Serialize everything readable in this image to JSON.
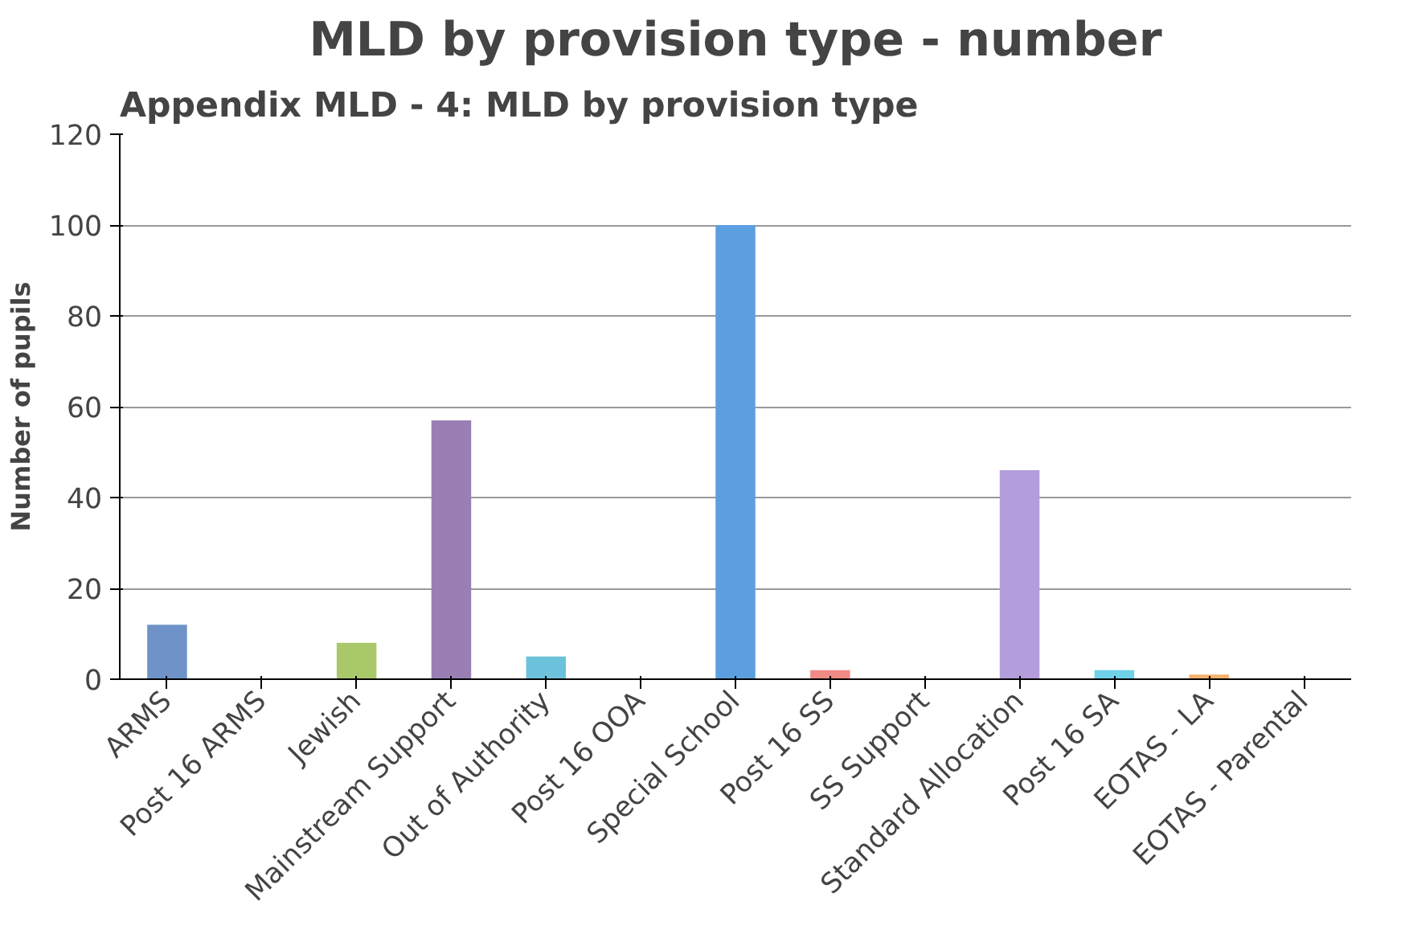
{
  "chart_data": {
    "type": "bar",
    "title": "MLD by provision type - number",
    "ylabel": "Number of pupils",
    "annotations": [
      "Appendix MLD - 4: MLD by provision type"
    ],
    "categories": [
      "ARMS",
      "Post 16 ARMS",
      "Jewish",
      "Mainstream Support",
      "Out of Authority",
      "Post 16 OOA",
      "Special School",
      "Post 16 SS",
      "SS Support",
      "Standard Allocation",
      "Post 16 SA",
      "EOTAS - LA",
      "EOTAS - Parental"
    ],
    "values": [
      12,
      0,
      8,
      57,
      5,
      0,
      100,
      2,
      0,
      46,
      2,
      1,
      0
    ],
    "colors": [
      "#6f93c9",
      "#6f93c9",
      "#a9c86a",
      "#9a7fb4",
      "#6cc2da",
      "#6cc2da",
      "#5c9fe0",
      "#f08a85",
      "#f08a85",
      "#b39ddb",
      "#6fd2e8",
      "#f5b06e",
      "#f5b06e"
    ],
    "ylim": [
      0,
      120
    ],
    "yticks": [
      0,
      20,
      40,
      60,
      80,
      100,
      120
    ],
    "grid": "y"
  }
}
